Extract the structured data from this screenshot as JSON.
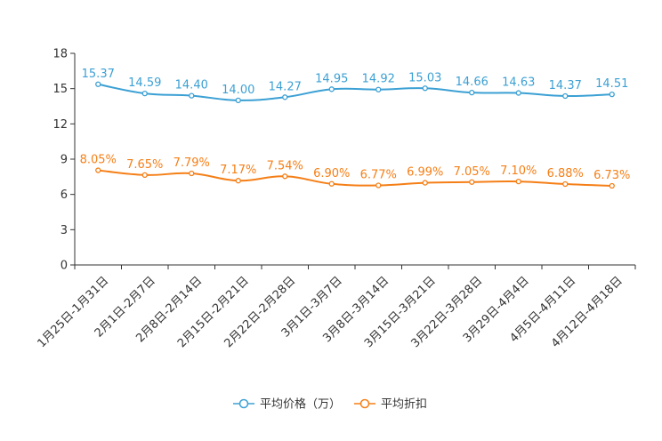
{
  "chart_data": {
    "type": "line",
    "title": "",
    "xlabel": "",
    "ylabel": "",
    "ylim": [
      0,
      18
    ],
    "yticks": [
      0,
      3,
      6,
      9,
      12,
      15,
      18
    ],
    "grid": false,
    "legend": "bottom-center",
    "categories": [
      "1月25日-1月31日",
      "2月1日-2月7日",
      "2月8日-2月14日",
      "2月15日-2月21日",
      "2月22日-2月28日",
      "3月1日-3月7日",
      "3月8日-3月14日",
      "3月15日-3月21日",
      "3月22日-3月28日",
      "3月29日-4月4日",
      "4月5日-4月11日",
      "4月12日-4月18日"
    ],
    "series": [
      {
        "name": "平均价格（万）",
        "color": "#3ba0d4",
        "values": [
          15.37,
          14.59,
          14.4,
          14.0,
          14.27,
          14.95,
          14.92,
          15.03,
          14.66,
          14.63,
          14.37,
          14.51
        ],
        "labels": [
          "15.37",
          "14.59",
          "14.40",
          "14.00",
          "14.27",
          "14.95",
          "14.92",
          "15.03",
          "14.66",
          "14.63",
          "14.37",
          "14.51"
        ]
      },
      {
        "name": "平均折扣",
        "color": "#f57f17",
        "values": [
          8.05,
          7.65,
          7.79,
          7.17,
          7.54,
          6.9,
          6.77,
          6.99,
          7.05,
          7.1,
          6.88,
          6.73
        ],
        "labels": [
          "8.05%",
          "7.65%",
          "7.79%",
          "7.17%",
          "7.54%",
          "6.90%",
          "6.77%",
          "6.99%",
          "7.05%",
          "7.10%",
          "6.88%",
          "6.73%"
        ]
      }
    ]
  }
}
